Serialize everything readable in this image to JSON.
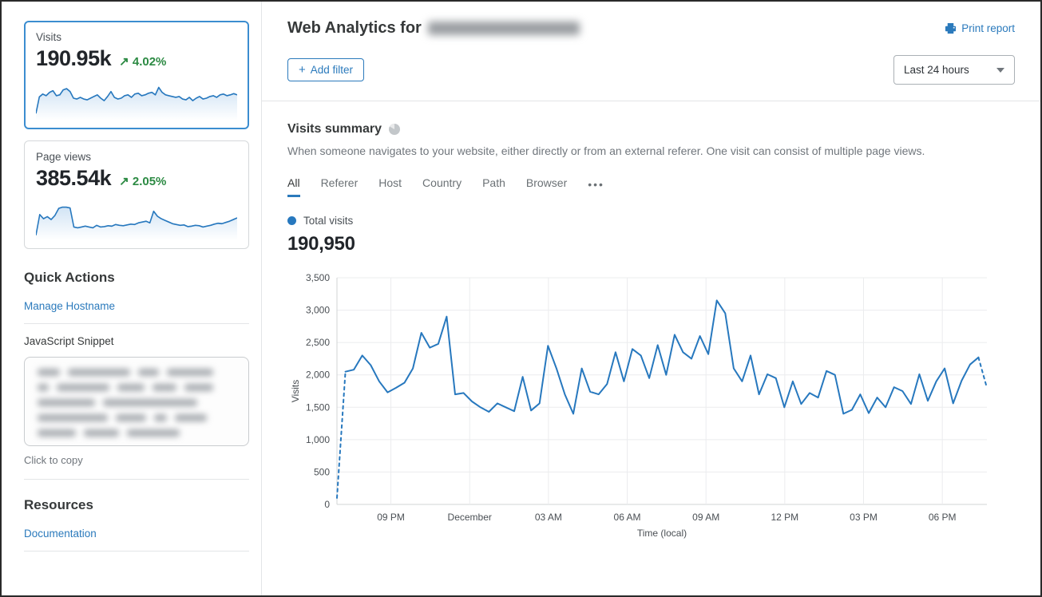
{
  "accent_blue": "#2b7abc",
  "chart_line_blue": "#2778be",
  "positive_green": "#2c8a43",
  "sidebar": {
    "cards": [
      {
        "label": "Visits",
        "value": "190.95k",
        "delta": "4.02%",
        "delta_arrow": "↗",
        "selected": true,
        "sparkline": [
          15,
          55,
          62,
          58,
          66,
          70,
          58,
          60,
          72,
          75,
          68,
          52,
          50,
          54,
          50,
          48,
          52,
          56,
          60,
          52,
          46,
          56,
          68,
          54,
          50,
          52,
          58,
          60,
          54,
          62,
          64,
          58,
          60,
          64,
          66,
          60,
          78,
          66,
          60,
          58,
          56,
          54,
          56,
          50,
          48,
          54,
          46,
          52,
          56,
          50,
          52,
          56,
          58,
          54,
          60,
          62,
          58,
          60,
          63,
          60
        ]
      },
      {
        "label": "Page views",
        "value": "385.54k",
        "delta": "2.05%",
        "delta_arrow": "↗",
        "selected": false,
        "sparkline": [
          10,
          60,
          50,
          55,
          48,
          58,
          75,
          78,
          78,
          76,
          30,
          28,
          30,
          32,
          30,
          28,
          34,
          30,
          31,
          33,
          32,
          36,
          34,
          33,
          35,
          37,
          36,
          40,
          42,
          44,
          40,
          68,
          56,
          50,
          46,
          42,
          38,
          36,
          34,
          35,
          31,
          32,
          34,
          33,
          30,
          32,
          34,
          37,
          39,
          38,
          41,
          44,
          48,
          52
        ]
      }
    ],
    "quick_actions": {
      "title": "Quick Actions",
      "manage_hostname": "Manage Hostname",
      "js_snippet": "JavaScript Snippet",
      "snippet_redacted": true,
      "click_to_copy": "Click to copy"
    },
    "resources": {
      "title": "Resources",
      "documentation": "Documentation"
    }
  },
  "header": {
    "title_prefix": "Web Analytics for",
    "domain_redacted": true,
    "print_report": "Print report"
  },
  "toolbar": {
    "add_filter": "Add filter",
    "time_range": "Last 24 hours"
  },
  "summary": {
    "title": "Visits summary",
    "description": "When someone navigates to your website, either directly or from an external referer. One visit can consist of multiple page views.",
    "tabs": [
      "All",
      "Referer",
      "Host",
      "Country",
      "Path",
      "Browser"
    ],
    "active_tab": "All",
    "legend_label": "Total visits",
    "total": "190,950"
  },
  "chart_data": {
    "type": "line",
    "title": "Total visits over last 24 hours",
    "xlabel": "Time (local)",
    "ylabel": "Visits",
    "ylim": [
      0,
      3500
    ],
    "y_ticks": [
      0,
      500,
      1000,
      1500,
      2000,
      2500,
      3000,
      3500
    ],
    "x_ticks": [
      "09 PM",
      "December",
      "03 AM",
      "06 AM",
      "09 AM",
      "12 PM",
      "03 PM",
      "06 PM"
    ],
    "grid": true,
    "legend_position": "top-left",
    "dashed_head_points": 2,
    "dashed_tail_points": 2,
    "values": [
      100,
      2050,
      2080,
      2300,
      2150,
      1900,
      1730,
      1800,
      1880,
      2100,
      2650,
      2420,
      2480,
      2900,
      1700,
      1720,
      1590,
      1500,
      1430,
      1560,
      1500,
      1440,
      1970,
      1450,
      1560,
      2450,
      2100,
      1700,
      1400,
      2100,
      1740,
      1700,
      1860,
      2350,
      1900,
      2400,
      2300,
      1950,
      2460,
      2000,
      2620,
      2350,
      2250,
      2600,
      2320,
      3150,
      2950,
      2100,
      1900,
      2300,
      1700,
      2010,
      1950,
      1500,
      1900,
      1550,
      1720,
      1650,
      2060,
      2000,
      1400,
      1460,
      1700,
      1410,
      1650,
      1500,
      1810,
      1750,
      1550,
      2010,
      1600,
      1900,
      2100,
      1560,
      1910,
      2160,
      2270,
      1800
    ]
  }
}
